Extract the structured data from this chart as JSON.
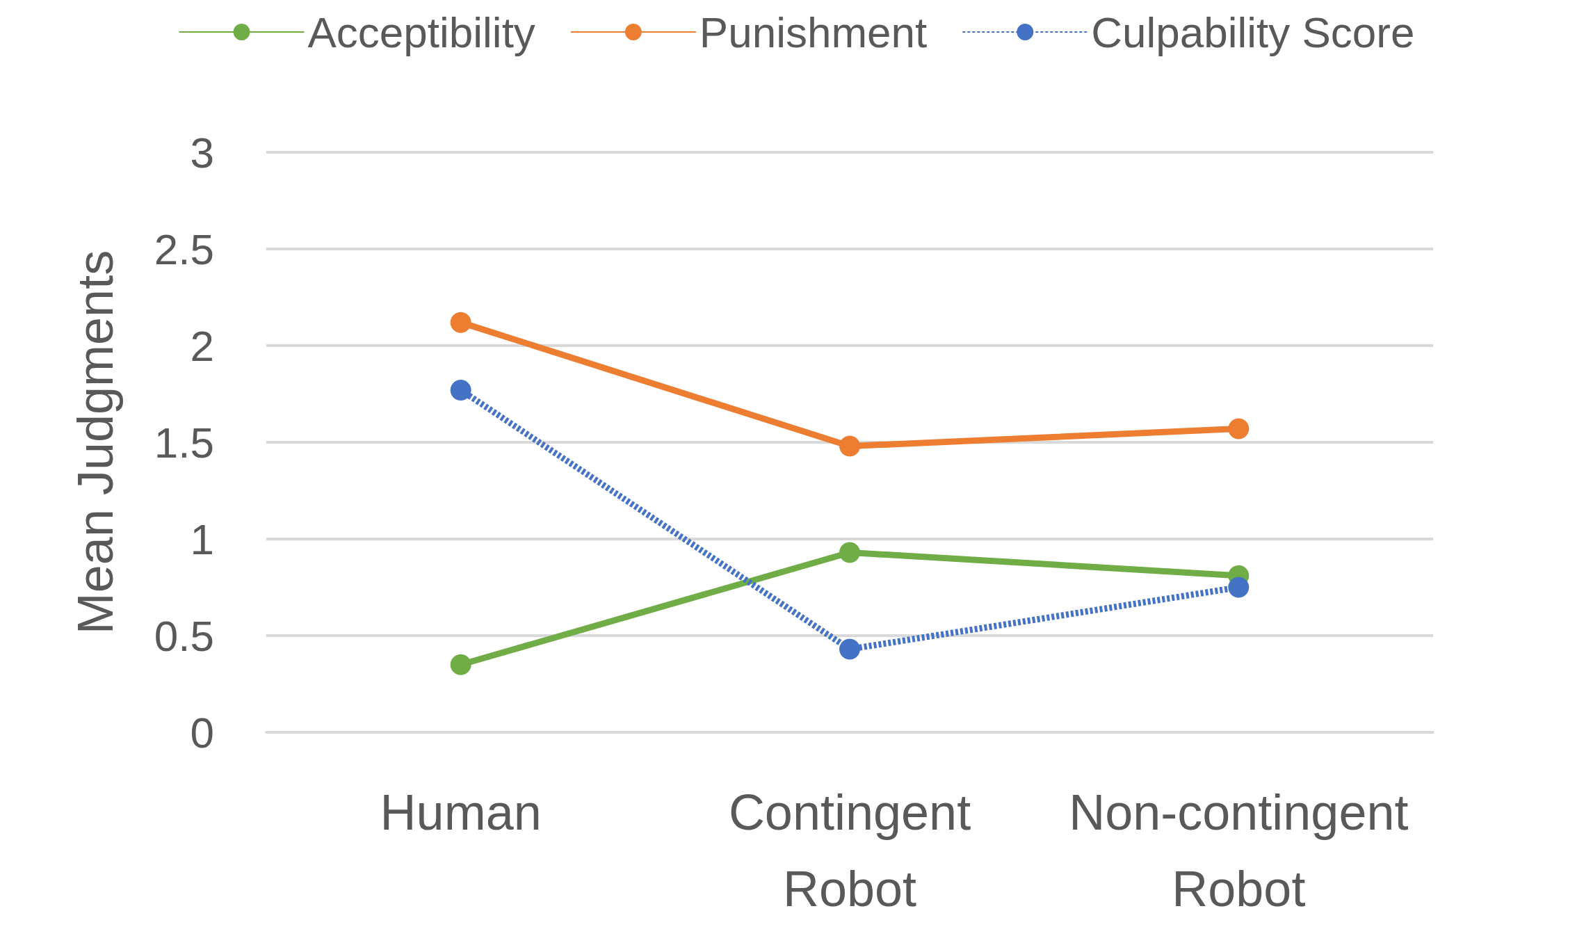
{
  "chart_data": {
    "type": "line",
    "ylabel": "Mean Judgments",
    "categories": [
      "Human",
      "Contingent\nRobot",
      "Non-contingent\nRobot"
    ],
    "series": [
      {
        "name": "Acceptibility",
        "color": "#70ad47",
        "values": [
          0.35,
          0.93,
          0.81
        ]
      },
      {
        "name": "Punishment",
        "color": "#ed7d31",
        "values": [
          2.12,
          1.48,
          1.57
        ]
      },
      {
        "name": "Culpability Score",
        "color": "#4472c4",
        "values": [
          1.77,
          0.43,
          0.75
        ],
        "line_style": "dashed"
      }
    ],
    "ylim": [
      0,
      3
    ],
    "yticks": [
      0,
      0.5,
      1,
      1.5,
      2,
      2.5,
      3
    ],
    "grid": "y",
    "legend": "top",
    "marker": "circle",
    "line_style": "solid"
  }
}
